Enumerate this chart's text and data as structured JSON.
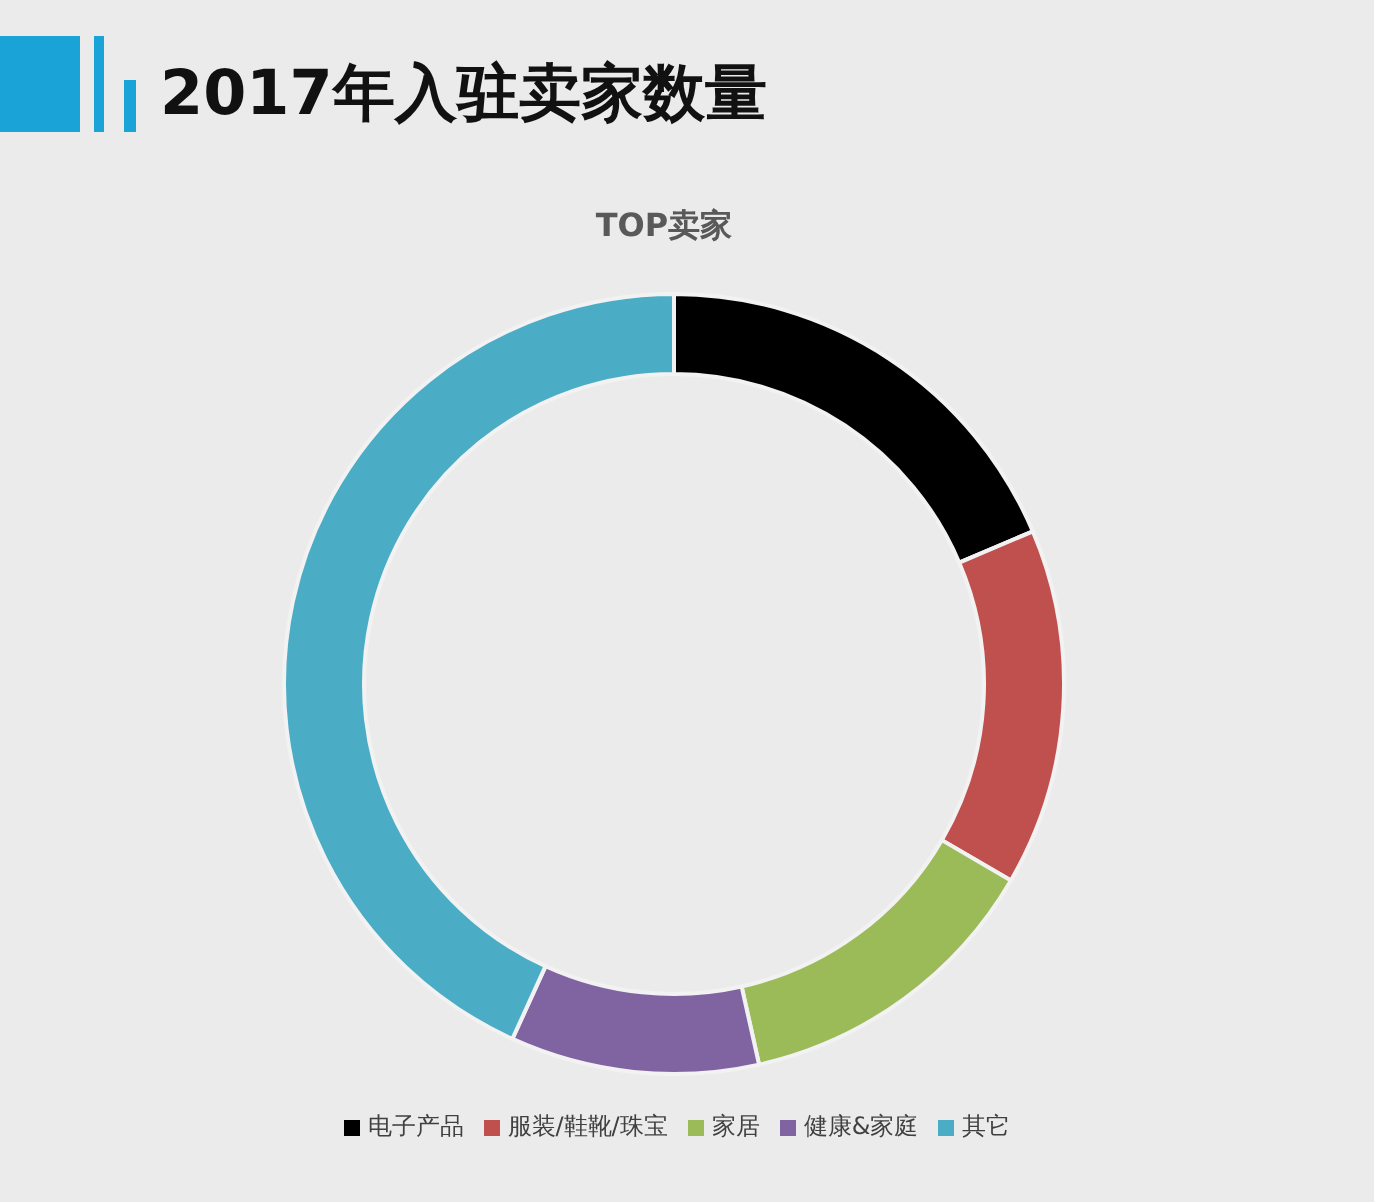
{
  "chart_data": {
    "type": "donut",
    "title": "2017年入驻卖家数量",
    "subtitle": "TOP卖家",
    "categories": [
      "电子产品",
      "服装/鞋靴/珠宝",
      "家居",
      "健康&家庭",
      "其它"
    ],
    "values": [
      18.6,
      14.8,
      13.1,
      10.3,
      43.2
    ],
    "colors": [
      "#000000",
      "#c0504d",
      "#9bbb59",
      "#8064a2",
      "#4bacc6"
    ],
    "legend": "bottom"
  }
}
